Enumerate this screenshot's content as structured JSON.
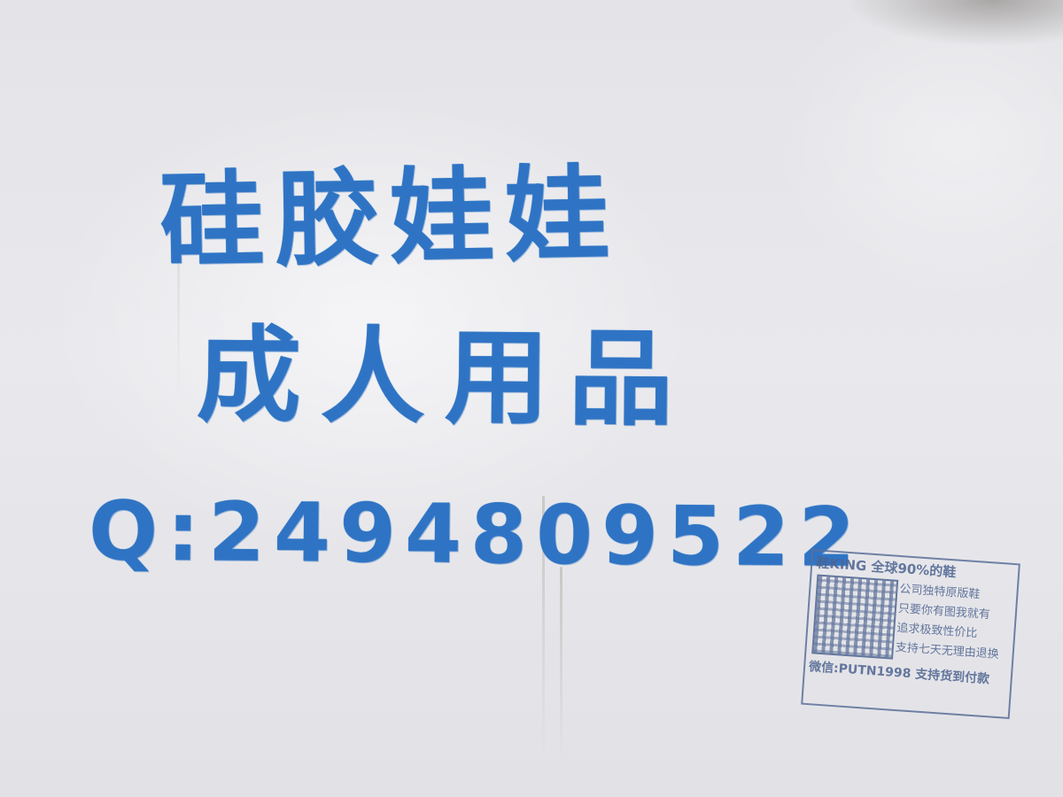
{
  "graffiti": {
    "line1": "硅胶娃娃",
    "line2": "成人用品",
    "line3": "Q:2494809522"
  },
  "stamp": {
    "header": "鞋KING 全球90%的鞋",
    "lines": [
      "公司独特原版鞋",
      "只要你有图我就有",
      "追求极致性价比",
      "支持七天无理由退换"
    ],
    "footer": "微信:PUTN1998 支持货到付款"
  },
  "colors": {
    "ink": "#2f74c4",
    "stamp_ink": "#4d6390",
    "wall": "#e6e6ea"
  }
}
